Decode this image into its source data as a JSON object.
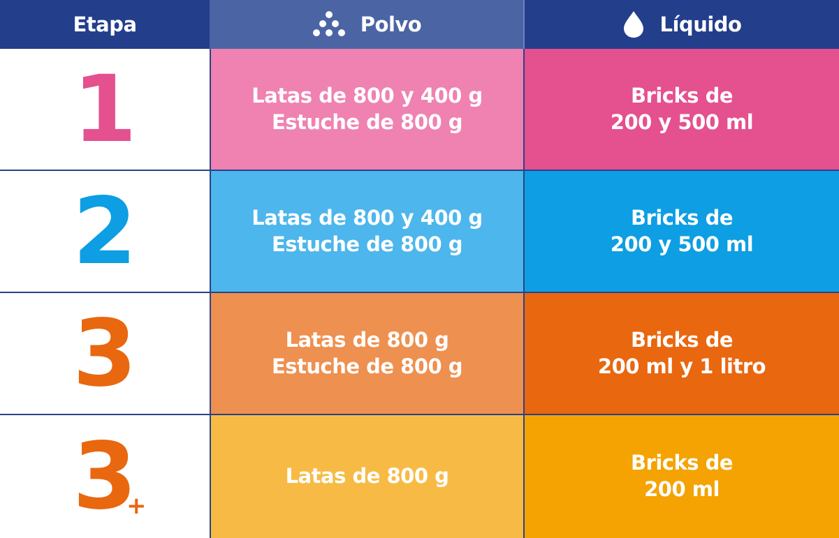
{
  "header": {
    "etapa": "Etapa",
    "polvo": "Polvo",
    "liquido": "Líquido",
    "polvo_icon": "powder-dots-icon",
    "liquido_icon": "drop-icon"
  },
  "colors": {
    "header_dark": "#233e8b",
    "header_mid": "#4b65a4",
    "stage1": "#e5508e",
    "stage2": "#0d9ee3",
    "stage3": "#e9670f",
    "stage3plus": "#e9670f"
  },
  "rows": [
    {
      "stage": "1",
      "suffix": "",
      "polvo": [
        "Latas de 800 y 400 g",
        "Estuche de 800 g"
      ],
      "liquido": [
        "Bricks de",
        "200 y 500 ml"
      ]
    },
    {
      "stage": "2",
      "suffix": "",
      "polvo": [
        "Latas de 800 y 400 g",
        "Estuche de 800 g"
      ],
      "liquido": [
        "Bricks de",
        "200 y 500 ml"
      ]
    },
    {
      "stage": "3",
      "suffix": "",
      "polvo": [
        "Latas de 800 g",
        "Estuche de 800 g"
      ],
      "liquido": [
        "Bricks de",
        "200 ml y 1 litro"
      ]
    },
    {
      "stage": "3",
      "suffix": "+",
      "polvo": [
        "Latas de 800 g"
      ],
      "liquido": [
        "Bricks de",
        "200 ml"
      ]
    }
  ]
}
